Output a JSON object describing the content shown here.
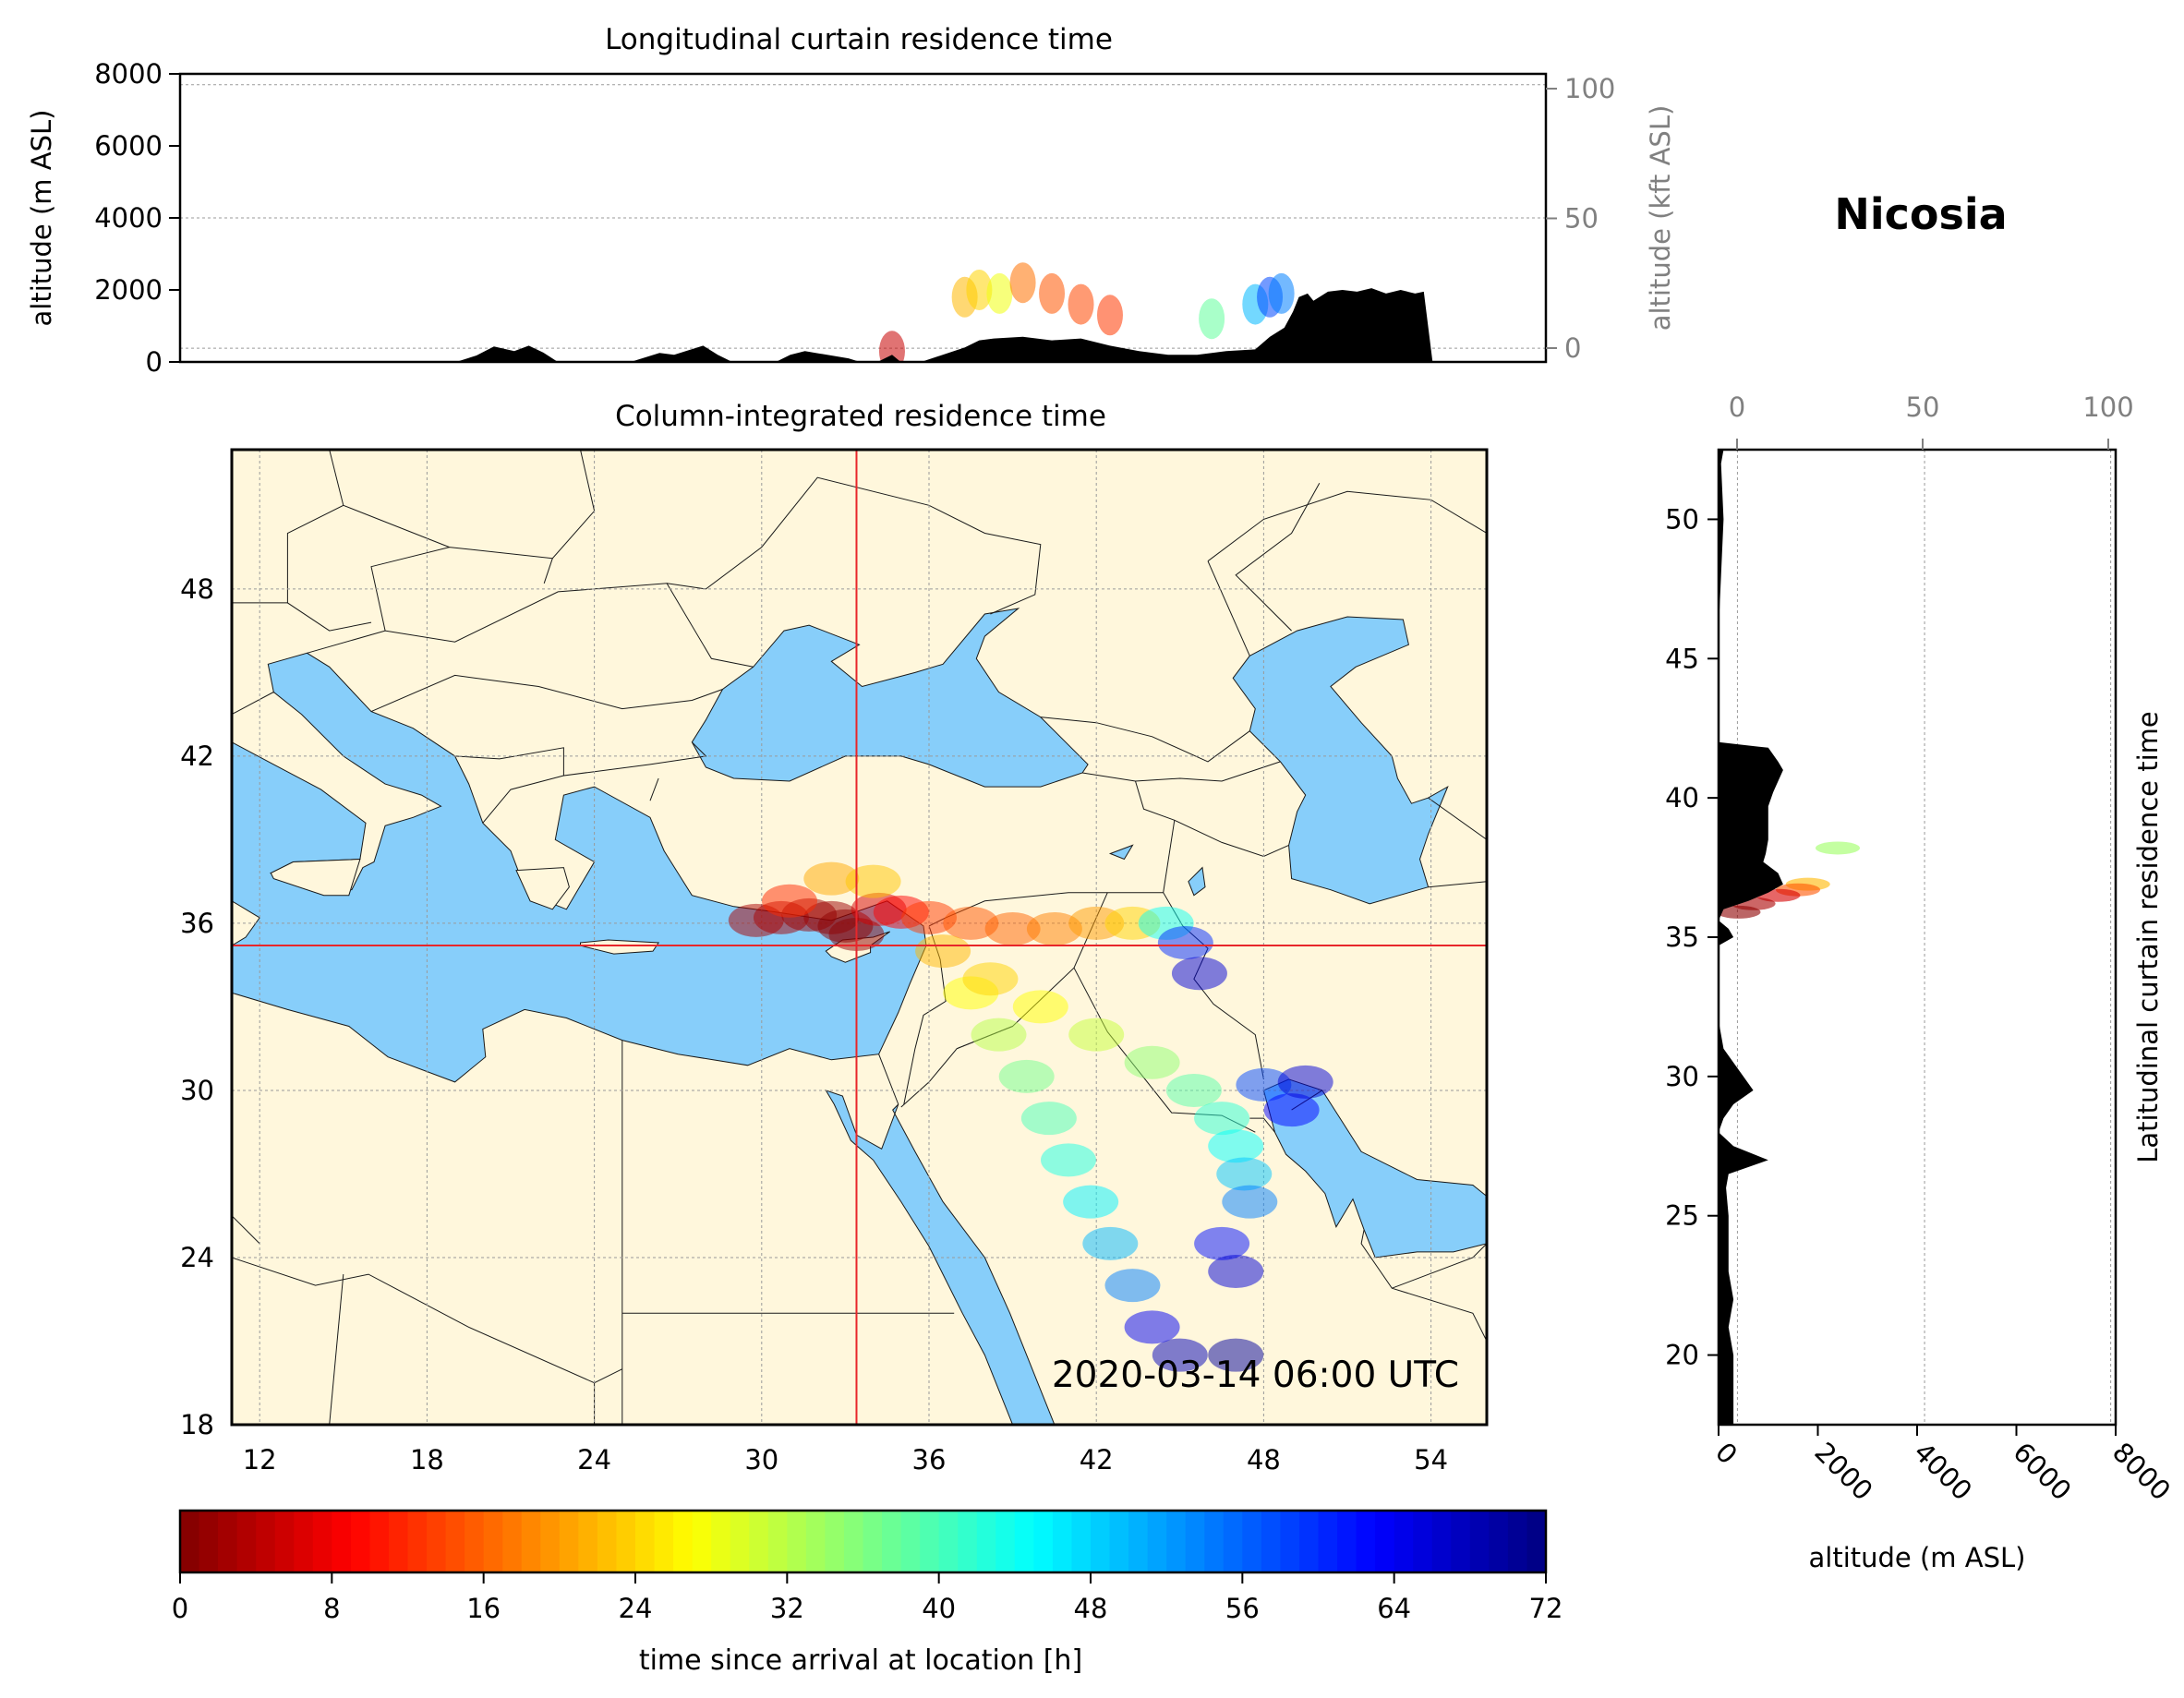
{
  "location_title": "Nicosia",
  "timestamp": "2020-03-14 06:00 UTC",
  "colors": {
    "land": "#fff7dc",
    "water": "#87cefa",
    "topography": "#000000",
    "crosshair": "#e8262a",
    "grid": "#9a9a9a",
    "secondary_axis_text": "#808080"
  },
  "colormap": "jet_r",
  "chart_data": [
    {
      "id": "longitudinal_curtain",
      "type": "heatmap",
      "title": "Longitudinal curtain residence time",
      "ylabel": "altitude (m ASL)",
      "ylabel_secondary": "altitude (kft ASL)",
      "xlim": [
        9.0,
        56.0
      ],
      "ylim": [
        0,
        8000
      ],
      "yticks": [
        "0",
        "2000",
        "4000",
        "6000",
        "8000"
      ],
      "yticks_secondary": [
        "0",
        "50",
        "100"
      ],
      "grid": true,
      "topography": {
        "lon": [
          9,
          18.5,
          19.2,
          19.8,
          20.5,
          21,
          21.5,
          22,
          24.5,
          25.5,
          26,
          27,
          27.5,
          28,
          28.5,
          29.5,
          30,
          30.5,
          32,
          32.4,
          33,
          33.5,
          33.8,
          34,
          34.5,
          36,
          36.5,
          37,
          38,
          39,
          40,
          41,
          42,
          43,
          44,
          45,
          46,
          46.5,
          47,
          47.3,
          47.5,
          47.8,
          48,
          48.5,
          49,
          49.5,
          50,
          50.5,
          51,
          51.5,
          51.8,
          52.1,
          53,
          56
        ],
        "alt": [
          0,
          0,
          180,
          430,
          300,
          450,
          260,
          0,
          0,
          250,
          200,
          450,
          200,
          0,
          0,
          0,
          200,
          300,
          100,
          0,
          0,
          200,
          0,
          0,
          0,
          400,
          600,
          650,
          700,
          600,
          650,
          450,
          300,
          200,
          200,
          300,
          350,
          700,
          950,
          1400,
          1800,
          1900,
          1700,
          1950,
          2000,
          1950,
          2050,
          1900,
          2000,
          1900,
          1950,
          0,
          0,
          0
        ]
      },
      "plume": [
        {
          "lon": 36.0,
          "alt": 1800,
          "hours": 22
        },
        {
          "lon": 36.5,
          "alt": 2000,
          "hours": 24
        },
        {
          "lon": 37.2,
          "alt": 1900,
          "hours": 28
        },
        {
          "lon": 38.0,
          "alt": 2200,
          "hours": 17
        },
        {
          "lon": 39.0,
          "alt": 1900,
          "hours": 15
        },
        {
          "lon": 40.0,
          "alt": 1600,
          "hours": 14
        },
        {
          "lon": 41.0,
          "alt": 1300,
          "hours": 13
        },
        {
          "lon": 44.5,
          "alt": 1200,
          "hours": 38
        },
        {
          "lon": 46.0,
          "alt": 1600,
          "hours": 50
        },
        {
          "lon": 46.5,
          "alt": 1800,
          "hours": 58
        },
        {
          "lon": 46.9,
          "alt": 1900,
          "hours": 54
        },
        {
          "lon": 33.5,
          "alt": 300,
          "hours": 5
        }
      ]
    },
    {
      "id": "column_integrated",
      "type": "heatmap",
      "title": "Column-integrated residence time",
      "xlim": [
        11.0,
        56.0
      ],
      "ylim": [
        18.0,
        53.0
      ],
      "xticks": [
        "12",
        "18",
        "24",
        "30",
        "36",
        "42",
        "48",
        "54"
      ],
      "yticks": [
        "18",
        "24",
        "30",
        "36",
        "42",
        "48"
      ],
      "grid": true,
      "crosshair": {
        "lon": 33.4,
        "lat": 35.2
      },
      "plume": [
        {
          "lon": 29.8,
          "lat": 36.1,
          "hours": 3
        },
        {
          "lon": 30.7,
          "lat": 36.2,
          "hours": 3
        },
        {
          "lon": 31.7,
          "lat": 36.3,
          "hours": 2
        },
        {
          "lon": 32.5,
          "lat": 36.2,
          "hours": 2
        },
        {
          "lon": 33.0,
          "lat": 35.9,
          "hours": 1
        },
        {
          "lon": 33.4,
          "lat": 35.6,
          "hours": 1
        },
        {
          "lon": 34.2,
          "lat": 36.5,
          "hours": 6
        },
        {
          "lon": 35.0,
          "lat": 36.4,
          "hours": 9
        },
        {
          "lon": 31.0,
          "lat": 36.8,
          "hours": 12
        },
        {
          "lon": 32.5,
          "lat": 37.6,
          "hours": 21
        },
        {
          "lon": 34.0,
          "lat": 37.5,
          "hours": 23
        },
        {
          "lon": 36.0,
          "lat": 36.2,
          "hours": 13
        },
        {
          "lon": 37.5,
          "lat": 36.0,
          "hours": 15
        },
        {
          "lon": 39.0,
          "lat": 35.8,
          "hours": 16
        },
        {
          "lon": 40.5,
          "lat": 35.8,
          "hours": 18
        },
        {
          "lon": 42.0,
          "lat": 36.0,
          "hours": 20
        },
        {
          "lon": 43.3,
          "lat": 36.0,
          "hours": 24
        },
        {
          "lon": 44.5,
          "lat": 36.0,
          "hours": 44
        },
        {
          "lon": 45.2,
          "lat": 35.3,
          "hours": 60
        },
        {
          "lon": 45.7,
          "lat": 34.2,
          "hours": 66
        },
        {
          "lon": 36.5,
          "lat": 35.0,
          "hours": 22
        },
        {
          "lon": 37.5,
          "lat": 33.5,
          "hours": 27
        },
        {
          "lon": 38.5,
          "lat": 32.0,
          "hours": 32
        },
        {
          "lon": 39.5,
          "lat": 30.5,
          "hours": 37
        },
        {
          "lon": 40.3,
          "lat": 29.0,
          "hours": 40
        },
        {
          "lon": 41.0,
          "lat": 27.5,
          "hours": 43
        },
        {
          "lon": 41.8,
          "lat": 26.0,
          "hours": 46
        },
        {
          "lon": 42.5,
          "lat": 24.5,
          "hours": 50
        },
        {
          "lon": 43.3,
          "lat": 23.0,
          "hours": 54
        },
        {
          "lon": 38.2,
          "lat": 34.0,
          "hours": 24
        },
        {
          "lon": 40.0,
          "lat": 33.0,
          "hours": 27
        },
        {
          "lon": 42.0,
          "lat": 32.0,
          "hours": 31
        },
        {
          "lon": 44.0,
          "lat": 31.0,
          "hours": 35
        },
        {
          "lon": 45.5,
          "lat": 30.0,
          "hours": 39
        },
        {
          "lon": 46.5,
          "lat": 29.0,
          "hours": 42
        },
        {
          "lon": 47.0,
          "lat": 28.0,
          "hours": 45
        },
        {
          "lon": 47.3,
          "lat": 27.0,
          "hours": 49
        },
        {
          "lon": 47.5,
          "lat": 26.0,
          "hours": 54
        },
        {
          "lon": 46.5,
          "lat": 24.5,
          "hours": 62
        },
        {
          "lon": 47.0,
          "lat": 23.5,
          "hours": 66
        },
        {
          "lon": 48.0,
          "lat": 30.2,
          "hours": 58
        },
        {
          "lon": 49.0,
          "lat": 29.3,
          "hours": 63
        },
        {
          "lon": 49.5,
          "lat": 30.3,
          "hours": 66
        },
        {
          "lon": 45.0,
          "lat": 20.5,
          "hours": 68
        },
        {
          "lon": 47.0,
          "lat": 20.5,
          "hours": 70
        },
        {
          "lon": 44.0,
          "lat": 21.5,
          "hours": 64
        }
      ]
    },
    {
      "id": "latitudinal_curtain",
      "type": "heatmap",
      "title": "Latitudinal curtain residence time",
      "xlabel": "altitude (m ASL)",
      "xlim": [
        0,
        8000
      ],
      "ylim": [
        17.5,
        52.5
      ],
      "xticks": [
        "0",
        "2000",
        "4000",
        "6000",
        "8000"
      ],
      "xticks_secondary": [
        "0",
        "50",
        "100"
      ],
      "yticks": [
        "20",
        "25",
        "30",
        "35",
        "40",
        "45",
        "50"
      ],
      "grid": true,
      "topography": {
        "lat": [
          52.5,
          52.0,
          50.0,
          48.0,
          46.0,
          44.5,
          42.0,
          41.8,
          41.3,
          41.0,
          40.6,
          40.2,
          39.7,
          39.0,
          38.5,
          38.0,
          37.7,
          37.3,
          36.9,
          36.6,
          36.3,
          36.0,
          35.6,
          35.3,
          35.0,
          34.7,
          34.0,
          32.0,
          31.0,
          30.5,
          30.0,
          29.5,
          29.0,
          28.5,
          28.0,
          27.5,
          27.0,
          26.5,
          26.0,
          25.0,
          24.0,
          23.0,
          22.0,
          21.0,
          20.0,
          19.0,
          18.0,
          17.5
        ],
        "alt": [
          100,
          50,
          100,
          50,
          0,
          0,
          0,
          1000,
          1200,
          1300,
          1200,
          1100,
          1000,
          1000,
          1000,
          950,
          900,
          1200,
          1300,
          1000,
          600,
          100,
          0,
          200,
          300,
          0,
          0,
          0,
          100,
          300,
          500,
          700,
          300,
          100,
          0,
          300,
          1000,
          200,
          150,
          200,
          200,
          200,
          300,
          200,
          300,
          300,
          300,
          300
        ]
      },
      "plume": [
        {
          "lat": 36.9,
          "alt": 1800,
          "hours": 22
        },
        {
          "lat": 36.7,
          "alt": 1600,
          "hours": 15
        },
        {
          "lat": 36.5,
          "alt": 1200,
          "hours": 6
        },
        {
          "lat": 36.2,
          "alt": 700,
          "hours": 3
        },
        {
          "lat": 35.9,
          "alt": 400,
          "hours": 1
        },
        {
          "lat": 38.2,
          "alt": 2400,
          "hours": 34
        }
      ]
    },
    {
      "id": "colorbar",
      "type": "heatmap",
      "xlabel": "time since arrival at location [h]",
      "range": [
        0,
        72
      ],
      "ticks": [
        "0",
        "8",
        "16",
        "24",
        "32",
        "40",
        "48",
        "56",
        "64",
        "72"
      ]
    }
  ]
}
